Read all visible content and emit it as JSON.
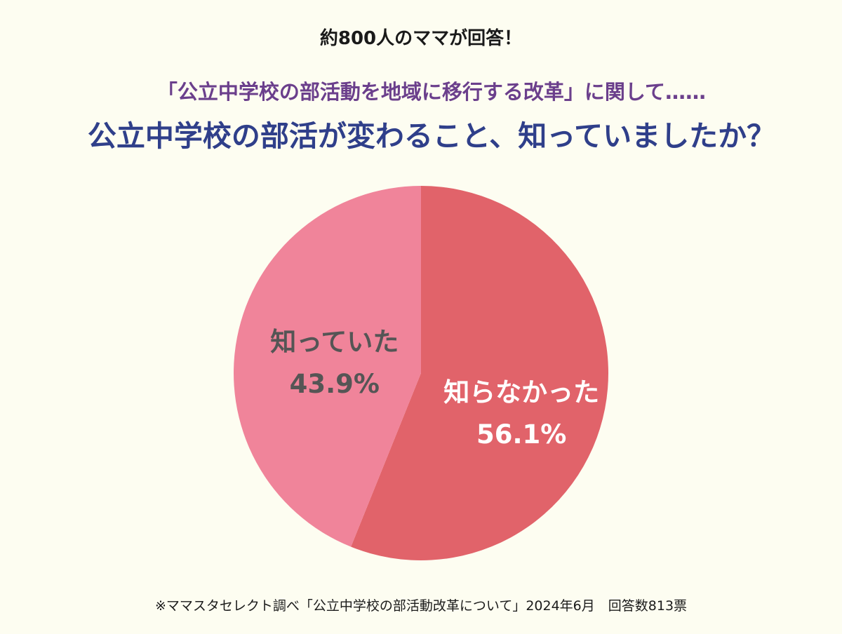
{
  "header": {
    "note": "約800人のママが回答！",
    "subtitle": "「公立中学校の部活動を地域に移行する改革」に関して……",
    "title": "公立中学校の部活が変わること、知っていましたか？"
  },
  "footer": {
    "note": "※ママスタセレクト調べ「公立中学校の部活動改革について」2024年6月　回答数813票"
  },
  "colors": {
    "background": "#fdfdf1",
    "slice_didnt_know": "#e1636a",
    "slice_knew": "#f0849a",
    "label_on_dark": "#ffffff",
    "label_on_light": "#555555"
  },
  "chart_data": {
    "type": "pie",
    "title": "公立中学校の部活が変わること、知っていましたか？",
    "slices": [
      {
        "label": "知らなかった",
        "value": 56.1,
        "value_label": "56.1%",
        "color": "#e1636a"
      },
      {
        "label": "知っていた",
        "value": 43.9,
        "value_label": "43.9%",
        "color": "#f0849a"
      }
    ],
    "start_angle": "12 o'clock",
    "direction": "clockwise",
    "legend": "none"
  }
}
